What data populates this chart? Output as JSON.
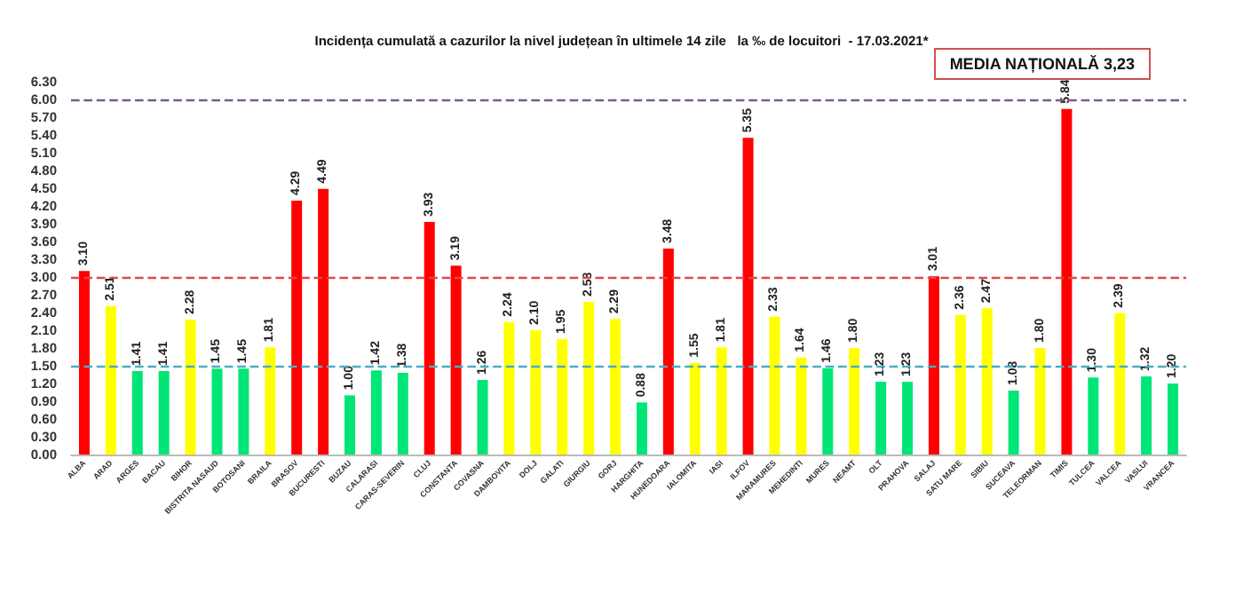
{
  "chart_data": {
    "type": "bar",
    "title": "Incidența cumulată a cazurilor la nivel județean în ultimele 14 zile   la ‰ de locuitori  - 17.03.2021*",
    "categories": [
      "ALBA",
      "ARAD",
      "ARGES",
      "BACAU",
      "BIHOR",
      "BISTRITA NASAUD",
      "BOTOSANI",
      "BRAILA",
      "BRASOV",
      "BUCURESTI",
      "BUZAU",
      "CALARASI",
      "CARAS-SEVERIN",
      "CLUJ",
      "CONSTANTA",
      "COVASNA",
      "DAMBOVITA",
      "DOLJ",
      "GALATI",
      "GIURGIU",
      "GORJ",
      "HARGHITA",
      "HUNEDOARA",
      "IALOMITA",
      "IASI",
      "ILFOV",
      "MARAMURES",
      "MEHEDINTI",
      "MURES",
      "NEAMT",
      "OLT",
      "PRAHOVA",
      "SALAJ",
      "SATU MARE",
      "SIBIU",
      "SUCEAVA",
      "TELEORMAN",
      "TIMIS",
      "TULCEA",
      "VALCEA",
      "VASLUI",
      "VRANCEA"
    ],
    "values": [
      3.1,
      2.51,
      1.41,
      1.41,
      2.28,
      1.45,
      1.45,
      1.81,
      4.29,
      4.49,
      1.0,
      1.42,
      1.38,
      3.93,
      3.19,
      1.26,
      2.24,
      2.1,
      1.95,
      2.58,
      2.29,
      0.88,
      3.48,
      1.55,
      1.81,
      5.35,
      2.33,
      1.64,
      1.46,
      1.8,
      1.23,
      1.23,
      3.01,
      2.36,
      2.47,
      1.08,
      1.8,
      5.84,
      1.3,
      2.39,
      1.32,
      1.2
    ],
    "colors": [
      "#ff0000",
      "#ffff00",
      "#00e676",
      "#00e676",
      "#ffff00",
      "#00e676",
      "#00e676",
      "#ffff00",
      "#ff0000",
      "#ff0000",
      "#00e676",
      "#00e676",
      "#00e676",
      "#ff0000",
      "#ff0000",
      "#00e676",
      "#ffff00",
      "#ffff00",
      "#ffff00",
      "#ffff00",
      "#ffff00",
      "#00e676",
      "#ff0000",
      "#ffff00",
      "#ffff00",
      "#ff0000",
      "#ffff00",
      "#ffff00",
      "#00e676",
      "#ffff00",
      "#00e676",
      "#00e676",
      "#ff0000",
      "#ffff00",
      "#ffff00",
      "#00e676",
      "#ffff00",
      "#ff0000",
      "#00e676",
      "#ffff00",
      "#00e676",
      "#00e676"
    ],
    "value_labels": [
      "3.10",
      "2.51",
      "1.41",
      "1.41",
      "2.28",
      "1.45",
      "1.45",
      "1.81",
      "4.29",
      "4.49",
      "1.00",
      "1.42",
      "1.38",
      "3.93",
      "3.19",
      "1.26",
      "2.24",
      "2.10",
      "1.95",
      "2.58",
      "2.29",
      "0.88",
      "3.48",
      "1.55",
      "1.81",
      "5.35",
      "2.33",
      "1.64",
      "1.46",
      "1.80",
      "1.23",
      "1.23",
      "3.01",
      "2.36",
      "2.47",
      "1.08",
      "1.80",
      "5.84",
      "1.30",
      "2.39",
      "1.32",
      "1.20"
    ],
    "ylim": [
      0,
      6.3
    ],
    "yticks": [
      {
        "value": 0,
        "label": "0.00"
      },
      {
        "value": 0.3,
        "label": "0.30"
      },
      {
        "value": 0.6,
        "label": "0.60"
      },
      {
        "value": 0.9,
        "label": "0.90"
      },
      {
        "value": 1.2,
        "label": "1.20"
      },
      {
        "value": 1.5,
        "label": "1.50"
      },
      {
        "value": 1.8,
        "label": "1.80"
      },
      {
        "value": 2.1,
        "label": "2.10"
      },
      {
        "value": 2.4,
        "label": "2.40"
      },
      {
        "value": 2.7,
        "label": "2.70"
      },
      {
        "value": 3,
        "label": "3.00"
      },
      {
        "value": 3.3,
        "label": "3.30"
      },
      {
        "value": 3.6,
        "label": "3.60"
      },
      {
        "value": 3.9,
        "label": "3.90"
      },
      {
        "value": 4.2,
        "label": "4.20"
      },
      {
        "value": 4.5,
        "label": "4.50"
      },
      {
        "value": 4.8,
        "label": "4.80"
      },
      {
        "value": 5.1,
        "label": "5.10"
      },
      {
        "value": 5.4,
        "label": "5.40"
      },
      {
        "value": 5.7,
        "label": "5.70"
      },
      {
        "value": 6,
        "label": "6.00"
      },
      {
        "value": 6.3,
        "label": "6.30"
      }
    ],
    "ref_lines": [
      {
        "axis": "y",
        "value": 6,
        "color": "#7a5c86",
        "line_style": "dashed"
      },
      {
        "axis": "y",
        "value": 3,
        "color": "#e04848",
        "line_style": "dashed"
      },
      {
        "axis": "y",
        "value": 1.5,
        "color": "#4bacc6",
        "line_style": "dashed"
      }
    ],
    "annotations": [
      "MEDIA NAȚIONALĂ 3,23"
    ]
  }
}
